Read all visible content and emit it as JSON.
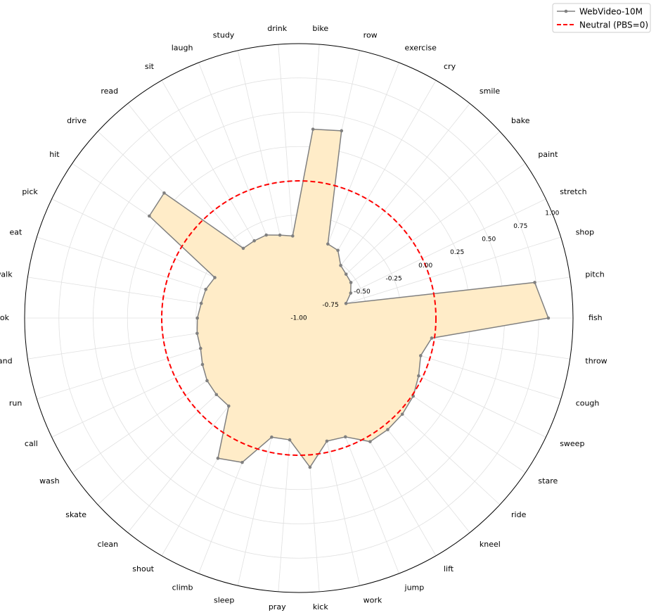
{
  "chart_data": {
    "type": "radar",
    "categories": [
      "fish",
      "pitch",
      "shop",
      "stretch",
      "paint",
      "bake",
      "smile",
      "cry",
      "exercise",
      "row",
      "bike",
      "drink",
      "study",
      "laugh",
      "sit",
      "read",
      "drive",
      "hit",
      "pick",
      "eat",
      "walk",
      "cook",
      "stand",
      "run",
      "call",
      "wash",
      "skate",
      "clean",
      "shout",
      "climb",
      "sleep",
      "pray",
      "kick",
      "work",
      "jump",
      "lift",
      "kneel",
      "ride",
      "stare",
      "sweep",
      "cough",
      "throw"
    ],
    "series": [
      {
        "name": "WebVideo-10M",
        "color": "#808080",
        "fill": "#ffecc8",
        "values": [
          0.82,
          0.74,
          -0.64,
          -0.58,
          -0.54,
          -0.53,
          -0.51,
          -0.43,
          -0.42,
          0.4,
          0.38,
          -0.4,
          -0.38,
          -0.35,
          -0.35,
          -0.35,
          0.34,
          0.32,
          -0.32,
          -0.29,
          -0.28,
          -0.26,
          -0.25,
          -0.25,
          -0.22,
          -0.19,
          -0.18,
          -0.18,
          0.18,
          0.13,
          -0.11,
          -0.11,
          0.09,
          -0.08,
          -0.07,
          0.04,
          0.04,
          0.03,
          0.01,
          -0.03,
          -0.07,
          -0.02
        ]
      }
    ],
    "neutral": {
      "name": "Neutral (PBS=0)",
      "value": 0,
      "color": "#ff0000"
    },
    "rlim": [
      -1,
      1
    ],
    "rticks": [
      {
        "value": -1,
        "label": "-1.00"
      },
      {
        "value": -0.75,
        "label": "-0.75"
      },
      {
        "value": -0.5,
        "label": "-0.50"
      },
      {
        "value": -0.25,
        "label": "-0.25"
      },
      {
        "value": 0,
        "label": "0.00"
      },
      {
        "value": 0.25,
        "label": "0.25"
      },
      {
        "value": 0.5,
        "label": "0.50"
      },
      {
        "value": 0.75,
        "label": "0.75"
      },
      {
        "value": 1,
        "label": "1.00"
      }
    ],
    "grid": true,
    "legend": "upper right"
  }
}
